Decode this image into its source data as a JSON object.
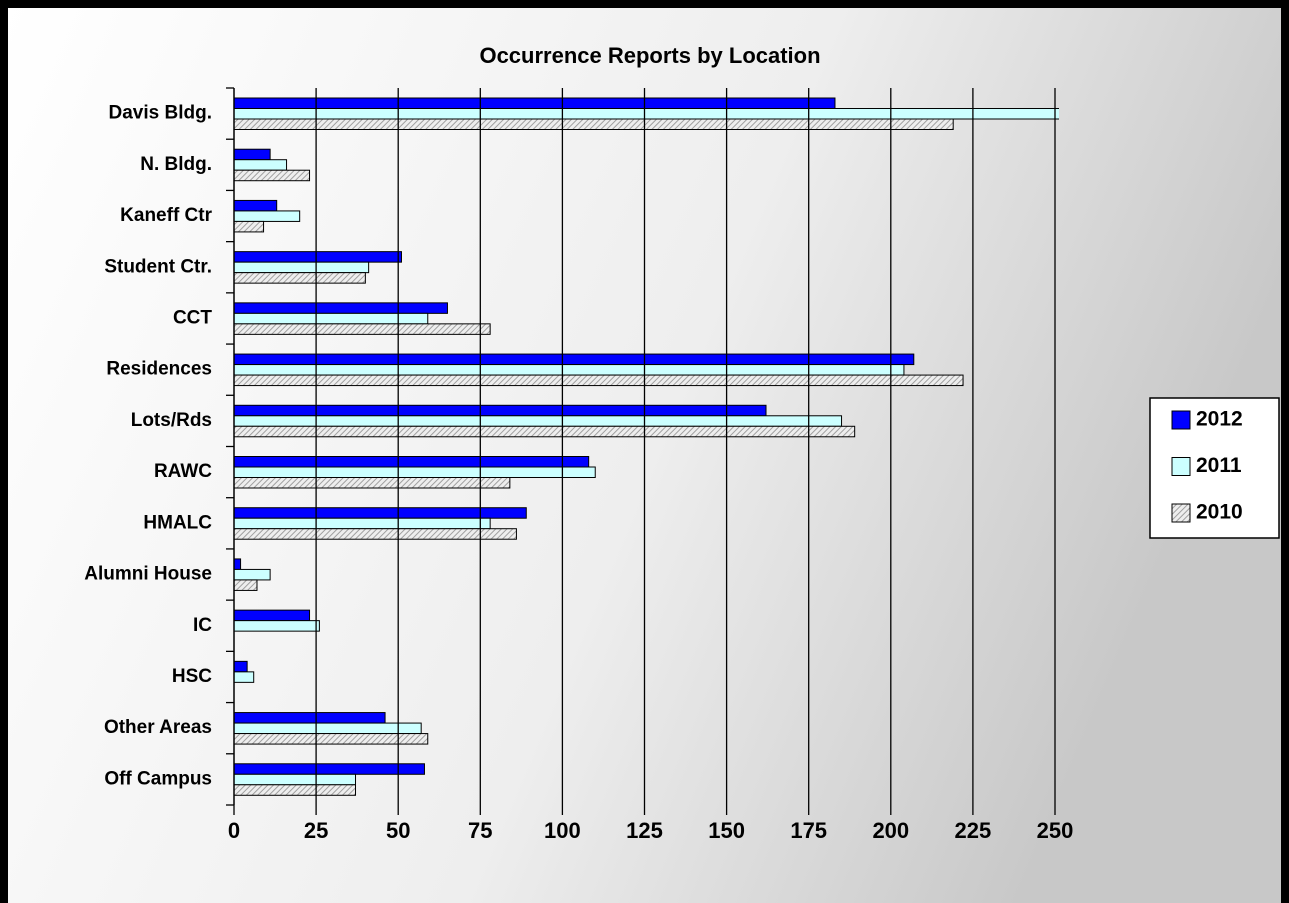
{
  "chart_data": {
    "type": "barh",
    "title": "Occurrence Reports by Location",
    "categories": [
      "Davis Bldg.",
      "N. Bldg.",
      "Kaneff Ctr",
      "Student Ctr.",
      "CCT",
      "Residences",
      "Lots/Rds",
      "RAWC",
      "HMALC",
      "Alumni House",
      "IC",
      "HSC",
      "Other Areas",
      "Off Campus"
    ],
    "series": [
      {
        "name": "2012",
        "color": "#0000ff",
        "values": [
          183,
          11,
          13,
          51,
          65,
          207,
          162,
          108,
          89,
          2,
          23,
          4,
          46,
          58
        ]
      },
      {
        "name": "2011",
        "color": "#ccffff",
        "values": [
          255,
          16,
          20,
          41,
          59,
          204,
          185,
          110,
          78,
          11,
          26,
          6,
          57,
          37
        ]
      },
      {
        "name": "2010",
        "color": "#a0a0a0",
        "values": [
          219,
          23,
          9,
          40,
          78,
          222,
          189,
          84,
          86,
          7,
          0,
          0,
          59,
          37
        ]
      }
    ],
    "xlim": [
      0,
      250
    ],
    "xticks": [
      0,
      25,
      50,
      75,
      100,
      125,
      150,
      175,
      200,
      225,
      250
    ],
    "grid": true,
    "legend": "right"
  }
}
